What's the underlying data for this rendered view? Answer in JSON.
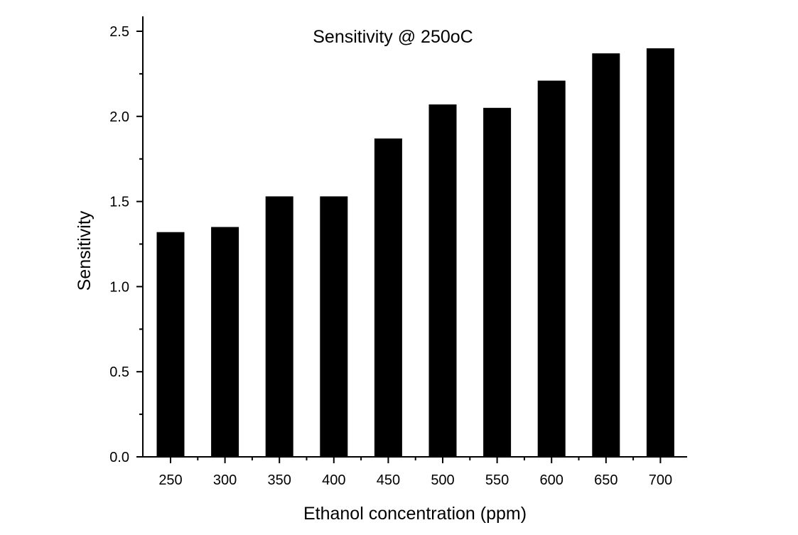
{
  "chart_data": {
    "type": "bar",
    "title": "Sensitivity @ 250oC",
    "xlabel": "Ethanol concentration (ppm)",
    "ylabel": "Sensitivity",
    "categories": [
      "250",
      "300",
      "350",
      "400",
      "450",
      "500",
      "550",
      "600",
      "650",
      "700"
    ],
    "series": [
      {
        "name": "Sensitivity",
        "values": [
          1.32,
          1.35,
          1.53,
          1.53,
          1.87,
          2.07,
          2.05,
          2.21,
          2.37,
          2.4
        ]
      }
    ],
    "ylim": [
      0,
      2.5
    ],
    "yticks": [
      "0.0",
      "0.5",
      "1.0",
      "1.5",
      "2.0",
      "2.5"
    ],
    "grid": false,
    "legend": "none",
    "bar_color": "#000000",
    "axis_color": "#000000"
  }
}
